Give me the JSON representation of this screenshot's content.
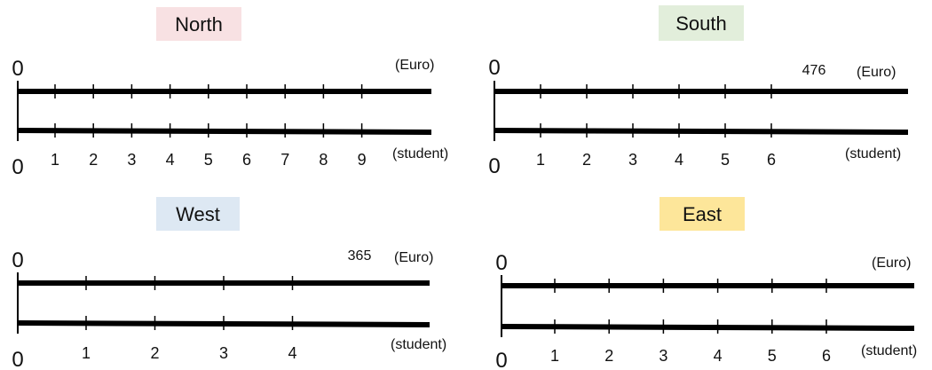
{
  "regions": [
    {
      "key": "north",
      "name": "North",
      "color": "#f8e1e3",
      "zero_top": "0",
      "zero_bottom": "0",
      "unit_top": "(Euro)",
      "unit_bottom": "(student)",
      "total": "",
      "ticks": [
        "1",
        "2",
        "3",
        "4",
        "5",
        "6",
        "7",
        "8",
        "9"
      ]
    },
    {
      "key": "south",
      "name": "South",
      "color": "#e2eedb",
      "zero_top": "0",
      "zero_bottom": "0",
      "unit_top": "(Euro)",
      "unit_bottom": "(student)",
      "total": "476",
      "ticks": [
        "1",
        "2",
        "3",
        "4",
        "5",
        "6"
      ]
    },
    {
      "key": "west",
      "name": "West",
      "color": "#dde8f3",
      "zero_top": "0",
      "zero_bottom": "0",
      "unit_top": "(Euro)",
      "unit_bottom": "(student)",
      "total": "365",
      "ticks": [
        "1",
        "2",
        "3",
        "4"
      ]
    },
    {
      "key": "east",
      "name": "East",
      "color": "#fde69a",
      "zero_top": "0",
      "zero_bottom": "0",
      "unit_top": "(Euro)",
      "unit_bottom": "(student)",
      "total": "",
      "ticks": [
        "1",
        "2",
        "3",
        "4",
        "5",
        "6"
      ]
    }
  ]
}
